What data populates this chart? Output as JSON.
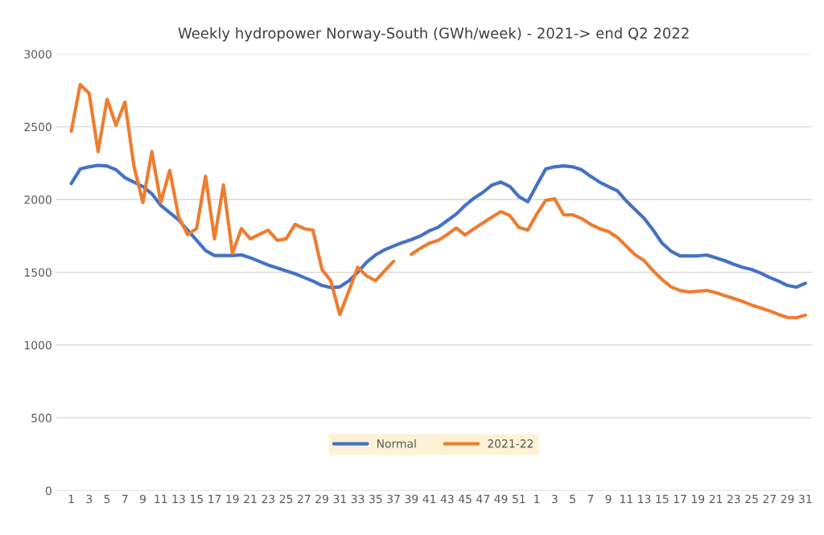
{
  "chart_data": {
    "type": "line",
    "title": "Weekly hydropower Norway-South (GWh/week) - 2021-> end Q2 2022",
    "categories": [
      "1",
      null,
      "3",
      null,
      "5",
      null,
      "7",
      null,
      "9",
      null,
      "11",
      null,
      "13",
      null,
      "15",
      null,
      "17",
      null,
      "19",
      null,
      "21",
      null,
      "23",
      null,
      "25",
      null,
      "27",
      null,
      "29",
      null,
      "31",
      null,
      "33",
      null,
      "35",
      null,
      "37",
      null,
      "39",
      null,
      "41",
      null,
      "43",
      null,
      "45",
      null,
      "47",
      null,
      "49",
      null,
      "51",
      null,
      "1",
      null,
      "3",
      null,
      "5",
      null,
      "7",
      null,
      "9",
      null,
      "11",
      null,
      "13",
      null,
      "15",
      null,
      "17",
      null,
      "19",
      null,
      "21",
      null,
      "23",
      null,
      "25",
      null,
      "27",
      null,
      "29",
      null,
      "31"
    ],
    "series": [
      {
        "name": "Normal",
        "color": "#4472c4",
        "values": [
          2110,
          2210,
          2225,
          2235,
          2230,
          2205,
          2150,
          2120,
          2090,
          2040,
          1960,
          1910,
          1860,
          1790,
          1720,
          1650,
          1615,
          1615,
          1615,
          1620,
          1600,
          1575,
          1550,
          1530,
          1510,
          1490,
          1465,
          1440,
          1410,
          1395,
          1400,
          1440,
          1500,
          1570,
          1620,
          1655,
          1680,
          1705,
          1725,
          1750,
          1785,
          1810,
          1855,
          1900,
          1960,
          2010,
          2050,
          2100,
          2120,
          2090,
          2020,
          1985,
          2100,
          2210,
          2225,
          2232,
          2225,
          2205,
          2160,
          2120,
          2090,
          2060,
          1990,
          1930,
          1870,
          1790,
          1700,
          1645,
          1613,
          1613,
          1613,
          1619,
          1600,
          1580,
          1555,
          1535,
          1519,
          1495,
          1465,
          1440,
          1410,
          1398,
          1425
        ]
      },
      {
        "name": "2021-22",
        "color": "#ed7d31",
        "values": [
          2470,
          2790,
          2730,
          2330,
          2690,
          2510,
          2670,
          2230,
          1980,
          2330,
          1980,
          2200,
          1880,
          1760,
          1800,
          2160,
          1730,
          2100,
          1630,
          1800,
          1730,
          1760,
          1790,
          1720,
          1730,
          1830,
          1800,
          1790,
          1520,
          1440,
          1210,
          1370,
          1535,
          1475,
          1442,
          1510,
          1575,
          null,
          1624,
          1665,
          1700,
          1720,
          1760,
          1805,
          1757,
          1800,
          1840,
          1880,
          1917,
          1890,
          1808,
          1790,
          1900,
          1995,
          2005,
          1895,
          1895,
          1870,
          1830,
          1800,
          1780,
          1740,
          1680,
          1620,
          1580,
          1510,
          1450,
          1400,
          1375,
          1365,
          1370,
          1375,
          1360,
          1340,
          1320,
          1300,
          1275,
          1255,
          1235,
          1210,
          1190,
          1188,
          1205
        ]
      }
    ],
    "ylim": [
      0,
      3000
    ],
    "yticks": [
      0,
      500,
      1000,
      1500,
      2000,
      2500,
      3000
    ],
    "grid": "y",
    "legend": "bottom",
    "line_style": "solid",
    "marker": "none"
  }
}
